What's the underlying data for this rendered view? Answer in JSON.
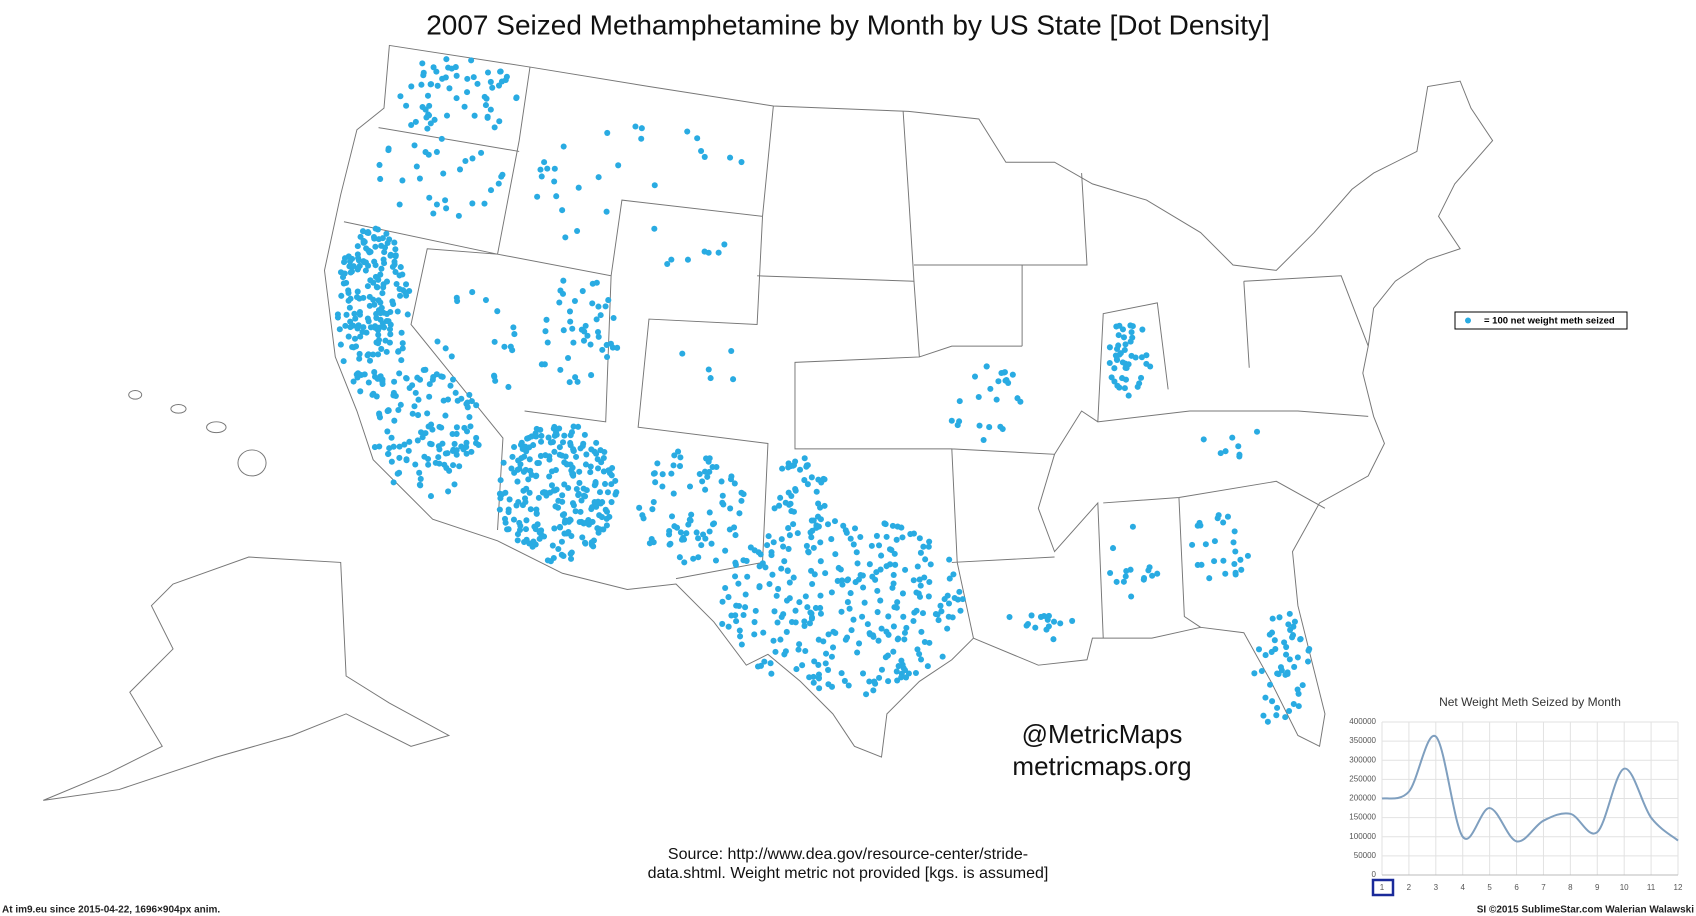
{
  "title": "2007 Seized Methamphetamine by Month by US State [Dot Density]",
  "legend_label": "= 100 net weight meth seized",
  "watermark": [
    "@MetricMaps",
    "metricmaps.org"
  ],
  "source": [
    "Source:  http://www.dea.gov/resource-center/stride-",
    "data.shtml.  Weight metric not provided [kgs. is assumed]"
  ],
  "footer_left": "At im9.eu since 2015-04-22, 1696×904px anim.",
  "footer_right": "SI ©2015 SublimeStar.com Walerian Walawski",
  "chart_data": {
    "type": "line",
    "title": "Net Weight Meth Seized by Month",
    "x": [
      1,
      2,
      3,
      4,
      5,
      6,
      7,
      8,
      9,
      10,
      11,
      12
    ],
    "values": [
      200000,
      218000,
      362000,
      100000,
      175000,
      88000,
      142000,
      160000,
      112000,
      278000,
      150000,
      90000
    ],
    "color": "#7f9fbf",
    "xlim": [
      1,
      12
    ],
    "xticks": [
      1,
      2,
      3,
      4,
      5,
      6,
      7,
      8,
      9,
      10,
      11,
      12
    ],
    "ylim": [
      0,
      400000
    ],
    "yticks": [
      0,
      50000,
      100000,
      150000,
      200000,
      250000,
      300000,
      350000,
      400000
    ],
    "grid": true
  }
}
